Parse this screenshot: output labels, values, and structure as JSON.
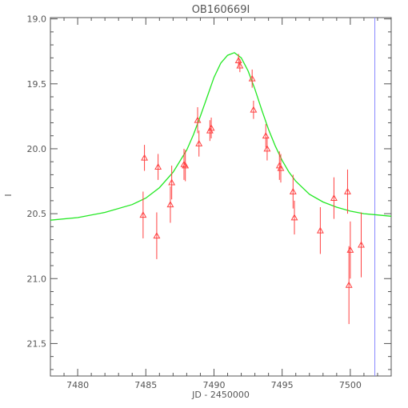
{
  "chart_data": {
    "type": "scatter",
    "title": "OB160669I",
    "xlabel": "JD - 2450000",
    "ylabel": "I",
    "xlim": [
      7478,
      7503
    ],
    "ylim": [
      21.75,
      18.99
    ],
    "y_inverted": true,
    "grid": false,
    "x_ticks": [
      7480,
      7485,
      7490,
      7495,
      7500
    ],
    "x_tick_labels": [
      "7480",
      "7485",
      "7490",
      "7495",
      "7500"
    ],
    "y_ticks": [
      19.0,
      19.5,
      20.0,
      20.5,
      21.0,
      21.5
    ],
    "y_tick_labels": [
      "19.0",
      "19.5",
      "20.0",
      "20.5",
      "21.0",
      "21.5"
    ],
    "series": [
      {
        "kind": "points_with_errorbars",
        "color": "#ff4040",
        "marker": "open-triangle",
        "x": [
          7484.8,
          7484.9,
          7485.8,
          7485.9,
          7486.8,
          7486.9,
          7487.8,
          7487.9,
          7488.8,
          7488.9,
          7489.7,
          7489.8,
          7491.8,
          7491.9,
          7492.8,
          7492.9,
          7493.8,
          7493.9,
          7494.8,
          7494.9,
          7495.8,
          7495.9,
          7497.8,
          7498.8,
          7499.8,
          7499.9,
          7500.0,
          7500.8
        ],
        "y": [
          20.51,
          20.07,
          20.67,
          20.14,
          20.43,
          20.26,
          20.12,
          20.13,
          19.78,
          19.96,
          19.86,
          19.84,
          19.32,
          19.36,
          19.46,
          19.7,
          19.9,
          20.0,
          20.13,
          20.15,
          20.33,
          20.53,
          20.63,
          20.38,
          20.33,
          21.05,
          20.78,
          20.74
        ],
        "err": [
          0.18,
          0.1,
          0.18,
          0.1,
          0.14,
          0.13,
          0.12,
          0.12,
          0.1,
          0.1,
          0.08,
          0.08,
          0.05,
          0.05,
          0.07,
          0.07,
          0.09,
          0.09,
          0.11,
          0.11,
          0.13,
          0.13,
          0.18,
          0.16,
          0.17,
          0.3,
          0.22,
          0.25
        ]
      },
      {
        "kind": "model_line",
        "color": "#22e822",
        "x": [
          7478,
          7480,
          7482,
          7484,
          7485,
          7486,
          7487,
          7488,
          7488.5,
          7489,
          7489.5,
          7490,
          7490.5,
          7491,
          7491.5,
          7492,
          7492.5,
          7493,
          7493.5,
          7494,
          7494.5,
          7495,
          7495.5,
          7496,
          7497,
          7498,
          7499,
          7500,
          7501,
          7502,
          7503
        ],
        "y": [
          20.55,
          20.53,
          20.49,
          20.43,
          20.38,
          20.3,
          20.18,
          20.01,
          19.89,
          19.75,
          19.6,
          19.45,
          19.34,
          19.28,
          19.26,
          19.3,
          19.4,
          19.54,
          19.7,
          19.85,
          19.98,
          20.09,
          20.18,
          20.25,
          20.35,
          20.41,
          20.45,
          20.48,
          20.5,
          20.51,
          20.52
        ]
      },
      {
        "kind": "vertical_line",
        "color": "#8888ff",
        "x": 7501.8
      }
    ]
  }
}
